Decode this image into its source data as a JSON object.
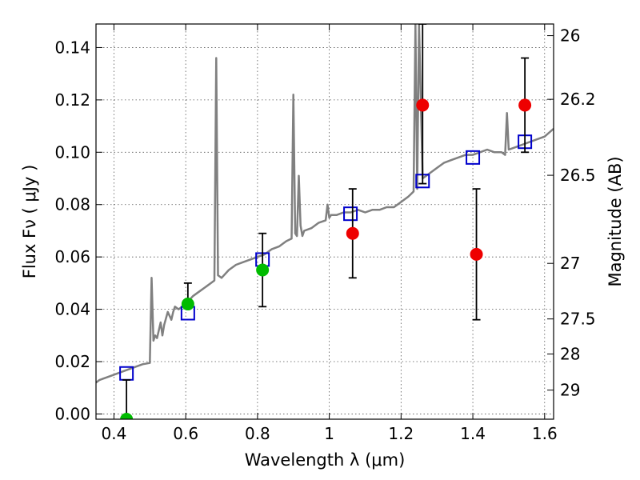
{
  "chart_data": {
    "type": "scatter",
    "xlabel": "Wavelength  λ (μm)",
    "ylabel": "Flux  Fν  ( μJy )",
    "y2label": "Magnitude (AB)",
    "xlim": [
      0.35,
      1.625
    ],
    "ylim": [
      -0.002,
      0.149
    ],
    "grid": true,
    "x_ticks": [
      "0.4",
      "0.6",
      "0.8",
      "1",
      "1.2",
      "1.4",
      "1.6"
    ],
    "y_ticks": [
      "0.00",
      "0.02",
      "0.04",
      "0.06",
      "0.08",
      "0.10",
      "0.12",
      "0.14"
    ],
    "mag_ticks": [
      "26",
      "26.2",
      "26.5",
      "27",
      "27.5",
      "28",
      "29"
    ],
    "series": [
      {
        "kind": "model_spectrum",
        "color": "#808080",
        "x": [
          0.35,
          0.36,
          0.38,
          0.4,
          0.42,
          0.44,
          0.46,
          0.48,
          0.5,
          0.505,
          0.51,
          0.515,
          0.52,
          0.53,
          0.535,
          0.54,
          0.55,
          0.56,
          0.565,
          0.57,
          0.58,
          0.6,
          0.62,
          0.64,
          0.66,
          0.67,
          0.68,
          0.685,
          0.69,
          0.7,
          0.72,
          0.74,
          0.76,
          0.78,
          0.8,
          0.82,
          0.84,
          0.86,
          0.88,
          0.895,
          0.9,
          0.905,
          0.91,
          0.915,
          0.92,
          0.925,
          0.93,
          0.95,
          0.97,
          0.99,
          0.995,
          1.0,
          1.005,
          1.02,
          1.04,
          1.06,
          1.08,
          1.1,
          1.12,
          1.14,
          1.16,
          1.18,
          1.2,
          1.22,
          1.235,
          1.24,
          1.245,
          1.25,
          1.26,
          1.28,
          1.3,
          1.32,
          1.34,
          1.36,
          1.38,
          1.4,
          1.42,
          1.44,
          1.46,
          1.48,
          1.49,
          1.495,
          1.5,
          1.52,
          1.54,
          1.56,
          1.58,
          1.6,
          1.625
        ],
        "y": [
          0.012,
          0.013,
          0.014,
          0.015,
          0.016,
          0.017,
          0.018,
          0.019,
          0.0195,
          0.052,
          0.028,
          0.03,
          0.029,
          0.035,
          0.03,
          0.034,
          0.039,
          0.036,
          0.039,
          0.041,
          0.04,
          0.042,
          0.045,
          0.047,
          0.049,
          0.05,
          0.051,
          0.136,
          0.053,
          0.052,
          0.055,
          0.057,
          0.058,
          0.059,
          0.06,
          0.061,
          0.063,
          0.064,
          0.066,
          0.067,
          0.122,
          0.069,
          0.068,
          0.091,
          0.072,
          0.068,
          0.07,
          0.071,
          0.073,
          0.074,
          0.08,
          0.075,
          0.076,
          0.076,
          0.077,
          0.077,
          0.078,
          0.077,
          0.078,
          0.078,
          0.079,
          0.079,
          0.081,
          0.083,
          0.085,
          0.149,
          0.086,
          0.149,
          0.09,
          0.092,
          0.094,
          0.096,
          0.097,
          0.098,
          0.099,
          0.099,
          0.1,
          0.101,
          0.1,
          0.1,
          0.099,
          0.115,
          0.101,
          0.102,
          0.103,
          0.104,
          0.105,
          0.106,
          0.109
        ]
      },
      {
        "kind": "model_photometry",
        "marker": "open-square",
        "color": "#0000cc",
        "x": [
          0.435,
          0.606,
          0.814,
          1.059,
          1.26,
          1.4,
          1.545
        ],
        "y": [
          0.0155,
          0.0385,
          0.059,
          0.0765,
          0.089,
          0.098,
          0.104
        ]
      },
      {
        "kind": "observed_optical",
        "marker": "circle",
        "color": "#00bb00",
        "x": [
          0.435,
          0.606,
          0.814
        ],
        "y": [
          -0.002,
          0.042,
          0.055
        ],
        "yerr_low": [
          -0.002,
          0.042,
          0.041
        ],
        "yerr_high": [
          0.013,
          0.05,
          0.069
        ]
      },
      {
        "kind": "observed_nir",
        "marker": "circle",
        "color": "#ee0000",
        "x": [
          1.065,
          1.26,
          1.41,
          1.545
        ],
        "y": [
          0.069,
          0.118,
          0.061,
          0.118
        ],
        "yerr_low": [
          0.052,
          0.088,
          0.036,
          0.1
        ],
        "yerr_high": [
          0.086,
          0.149,
          0.086,
          0.136
        ]
      }
    ]
  }
}
